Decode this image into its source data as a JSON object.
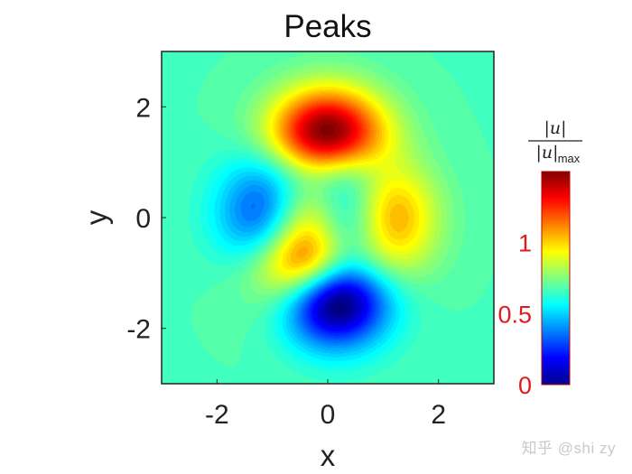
{
  "chart_data": {
    "type": "heatmap",
    "title": "Peaks",
    "xlabel": "x",
    "ylabel": "y",
    "xlim": [
      -3,
      3
    ],
    "ylim": [
      -3,
      3
    ],
    "xticks": [
      -2,
      0,
      2
    ],
    "yticks": [
      -2,
      0,
      2
    ],
    "function": "peaks",
    "colormap": "jet",
    "colorbar": {
      "label_numerator": "|u|",
      "label_denominator": "|u|",
      "label_denominator_subscript": "max",
      "ticks": [
        "0",
        "0.5",
        "1"
      ],
      "tick_color": "#e31a1c",
      "range": [
        0,
        1.5
      ]
    },
    "features": [
      {
        "type": "maximum",
        "x": 0.0,
        "y": 1.6,
        "value": 1.45
      },
      {
        "type": "minimum",
        "x": 0.2,
        "y": -1.6,
        "value": 0.0
      },
      {
        "type": "minimum",
        "x": -1.5,
        "y": 0.3,
        "value": 0.25
      },
      {
        "type": "maximum",
        "x": 1.3,
        "y": 0.0,
        "value": 1.0
      },
      {
        "type": "maximum",
        "x": -0.5,
        "y": -0.6,
        "value": 1.0
      }
    ]
  },
  "watermark": "知乎 @shi zy"
}
